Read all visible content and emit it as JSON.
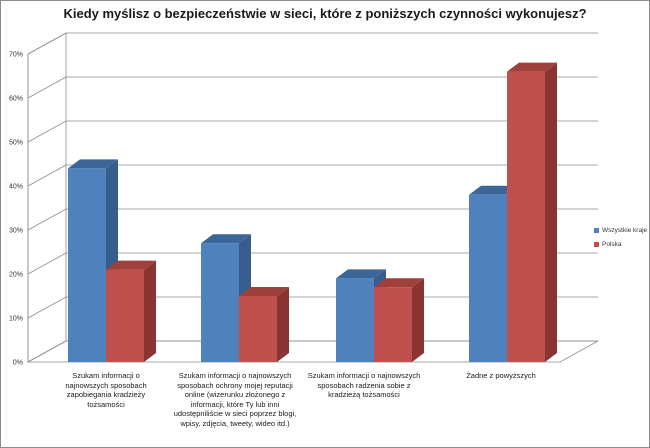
{
  "chart_data": {
    "type": "bar",
    "title": "Kiedy myślisz o bezpieczeństwie w sieci, które z poniższych czynności wykonujesz?",
    "xlabel": "",
    "ylabel": "",
    "ylim": [
      0,
      70
    ],
    "yticks": [
      "0%",
      "10%",
      "20%",
      "30%",
      "40%",
      "50%",
      "60%",
      "70%"
    ],
    "grid": true,
    "legend_position": "right",
    "categories": [
      "Szukam informacji o najnowszych sposobach zapobiegania kradzieży tożsamości",
      "Szukam informacji o najnowszych sposobach ochrony mojej reputacji online (wizerunku złożonego z informacji, które Ty lub inni udostępniliście w sieci poprzez blogi, wpisy, zdjęcia, tweety, wideo itd.)",
      "Szukam informacji o najnowszych sposobach radzenia sobie z kradzieżą tożsamości",
      "Żadne z powyższych"
    ],
    "series": [
      {
        "name": "Wszystkie kraje",
        "color": "#4f81bd",
        "top": "#3c6697",
        "side": "#375d8c",
        "values": [
          44,
          27,
          19,
          38
        ]
      },
      {
        "name": "Polska",
        "color": "#c0504d",
        "top": "#a0403d",
        "side": "#8b3532",
        "values": [
          21,
          15,
          17,
          66
        ]
      }
    ]
  }
}
